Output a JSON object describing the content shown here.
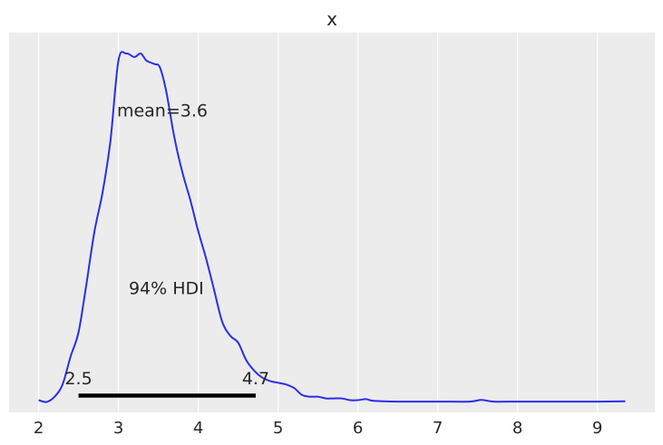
{
  "chart_data": {
    "type": "line",
    "title": "x",
    "xlabel": "",
    "ylabel": "",
    "xlim": [
      1.63,
      9.72
    ],
    "ylim": [
      -0.03,
      1.06
    ],
    "xticks": [
      2,
      3,
      4,
      5,
      6,
      7,
      8,
      9
    ],
    "grid": "vertical",
    "y_axis": "hidden",
    "series_color": "#2a2eec",
    "hdi_color": "#000000",
    "background_color": "#ececec",
    "series": [
      {
        "x": [
          2.0,
          2.1,
          2.2,
          2.3,
          2.4,
          2.5,
          2.6,
          2.7,
          2.8,
          2.9,
          3.0,
          3.1,
          3.2,
          3.28,
          3.35,
          3.45,
          3.52,
          3.6,
          3.7,
          3.8,
          3.9,
          4.0,
          4.1,
          4.2,
          4.3,
          4.4,
          4.5,
          4.6,
          4.7,
          4.8,
          4.9,
          5.0,
          5.1,
          5.2,
          5.3,
          5.4,
          5.5,
          5.6,
          5.7,
          5.8,
          5.9,
          6.0,
          6.1,
          6.2,
          6.5,
          7.0,
          7.4,
          7.55,
          7.7,
          8.0,
          8.5,
          9.0,
          9.35
        ],
        "y": [
          0.005,
          0.0,
          0.015,
          0.05,
          0.13,
          0.2,
          0.34,
          0.49,
          0.6,
          0.75,
          0.98,
          1.0,
          0.99,
          1.0,
          0.98,
          0.97,
          0.96,
          0.89,
          0.76,
          0.66,
          0.58,
          0.49,
          0.41,
          0.32,
          0.23,
          0.19,
          0.17,
          0.12,
          0.09,
          0.07,
          0.06,
          0.055,
          0.05,
          0.04,
          0.02,
          0.015,
          0.015,
          0.01,
          0.01,
          0.01,
          0.005,
          0.005,
          0.008,
          0.003,
          0.001,
          0.001,
          0.001,
          0.006,
          0.001,
          0.001,
          0.001,
          0.001,
          0.002
        ]
      }
    ],
    "annotations": {
      "mean": {
        "text": "mean=3.6",
        "x": 3.55,
        "y": 0.82
      },
      "hdi_label": {
        "text": "94% HDI",
        "x": 3.6,
        "y": 0.31
      },
      "hdi_low": {
        "text": "2.5",
        "x": 2.5,
        "y": 0.05
      },
      "hdi_high": {
        "text": "4.7",
        "x": 4.72,
        "y": 0.05
      }
    },
    "hdi": {
      "low": 2.5,
      "high": 4.72,
      "y": 0.018
    }
  }
}
